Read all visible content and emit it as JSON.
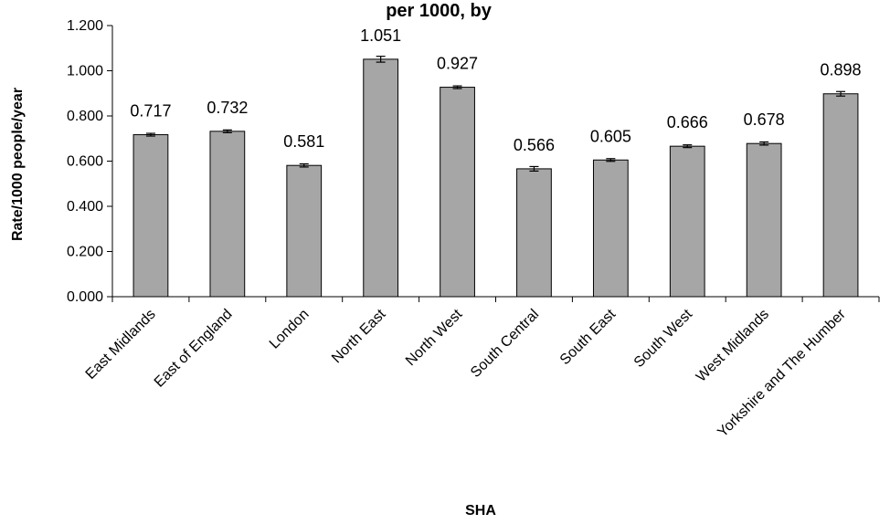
{
  "chart_data": {
    "type": "bar",
    "title": "per 1000, by",
    "xlabel": "SHA",
    "ylabel": "Rate/1000 people/year",
    "ylim": [
      0,
      1.2
    ],
    "y_ticks": [
      "0.000",
      "0.200",
      "0.400",
      "0.600",
      "0.800",
      "1.000",
      "1.200"
    ],
    "y_tick_values": [
      0,
      0.2,
      0.4,
      0.6,
      0.8,
      1.0,
      1.2
    ],
    "categories": [
      "East Midlands",
      "East of England",
      "London",
      "North East",
      "North West",
      "South Central",
      "South East",
      "South West",
      "West Midlands",
      "Yorkshire and The Humber"
    ],
    "values": [
      0.717,
      0.732,
      0.581,
      1.051,
      0.927,
      0.566,
      0.605,
      0.666,
      0.678,
      0.898
    ],
    "value_labels": [
      "0.717",
      "0.732",
      "0.581",
      "1.051",
      "0.927",
      "0.566",
      "0.605",
      "0.666",
      "0.678",
      "0.898"
    ],
    "error": [
      0.006,
      0.006,
      0.007,
      0.013,
      0.006,
      0.01,
      0.006,
      0.006,
      0.007,
      0.01
    ],
    "grid": false,
    "legend": "none",
    "colors": {
      "bar_fill": "#a6a6a6",
      "bar_stroke": "#000000",
      "axis": "#000000"
    }
  }
}
